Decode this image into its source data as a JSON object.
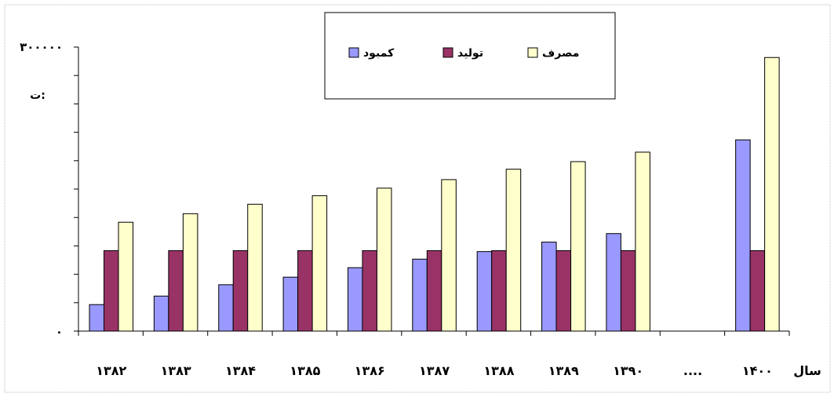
{
  "chart_data": {
    "type": "bar",
    "categories": [
      "۱۳۸۲",
      "۱۳۸۳",
      "۱۳۸۴",
      "۱۳۸۵",
      "۱۳۸۶",
      "۱۳۸۷",
      "۱۳۸۸",
      "۱۳۸۹",
      "۱۳۹۰",
      "....",
      "۱۴۰۰"
    ],
    "x_axis_title": "سال",
    "y_unit": "ت:",
    "y_ticks": [
      "۰",
      "۳۰۰۰۰۰"
    ],
    "ylim": [
      0,
      300000
    ],
    "grid": false,
    "legend_position": "top-right",
    "series": [
      {
        "name": "کمبود",
        "color": "#9999ff",
        "values": [
          28000,
          37000,
          49000,
          57000,
          67000,
          76000,
          84000,
          94000,
          103000,
          null,
          202000
        ]
      },
      {
        "name": "تولید",
        "color": "#993366",
        "values": [
          85000,
          85000,
          85000,
          85000,
          85000,
          85000,
          85000,
          85000,
          85000,
          null,
          85000
        ]
      },
      {
        "name": "مصرف",
        "color": "#ffffcc",
        "values": [
          115000,
          124000,
          134000,
          143000,
          151000,
          160000,
          171000,
          179000,
          189000,
          null,
          289000
        ]
      }
    ]
  }
}
